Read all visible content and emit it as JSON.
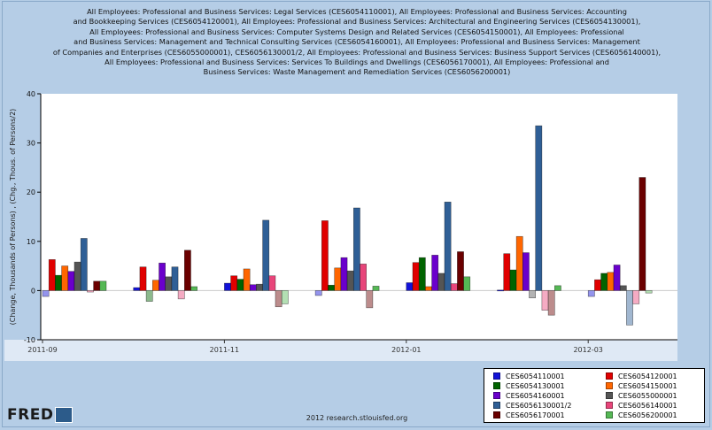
{
  "title_lines": [
    "All Employees: Professional and Business Services: Legal Services (CES6054110001), All Employees: Professional and Business Services: Accounting",
    "and Bookkeeping Services (CES6054120001), All Employees: Professional and Business Services: Architectural and Engineering Services (CES6054130001),",
    "All Employees: Professional and Business Services: Computer Systems Design and Related Services (CES6054150001), All Employees: Professional",
    "and Business Services: Management and Technical Consulting Services (CES6054160001), All Employees: Professional and Business Services: Management",
    "of Companies and Enterprises (CES6055000001), CES6056130001/2, All Employees: Professional and Business Services: Business Support Services (CES6056140001),",
    "All Employees: Professional and Business Services: Services To Buildings and Dwellings (CES6056170001), All Employees: Professional and",
    "Business Services: Waste Management and Remediation Services (CES6056200001)"
  ],
  "footer": "2012 research.stlouisfed.org",
  "logo": {
    "text": "FRED",
    "badge_icon": "chart-line-icon"
  },
  "colors": {
    "background": "#b5cde6",
    "plot_background": "#ffffff",
    "axis_band": "#dfe9f5"
  },
  "chart_data": {
    "type": "bar",
    "ylabel": "(Change, Thousands of Persons) , (Chg., Thous. of Persons/2)",
    "ylim": [
      -10,
      40
    ],
    "yticks": [
      -10,
      0,
      10,
      20,
      30,
      40
    ],
    "categories": [
      "2011-09",
      "2011-10",
      "2011-11",
      "2011-12",
      "2012-01",
      "2012-02",
      "2012-03"
    ],
    "x_tick_labels": [
      "2011-09",
      "2011-11",
      "2012-01",
      "2012-03"
    ],
    "x_tick_positions": [
      0,
      2,
      4,
      6
    ],
    "legend_position": "bottom-right",
    "series": [
      {
        "name": "CES6054110001",
        "color": "#1212d8",
        "values": [
          -1.2,
          0.6,
          1.5,
          -1.0,
          1.6,
          0.1,
          -1.2
        ]
      },
      {
        "name": "CES6054120001",
        "color": "#e00000",
        "values": [
          6.3,
          4.8,
          3.0,
          14.2,
          5.7,
          7.5,
          2.2
        ]
      },
      {
        "name": "CES6054130001",
        "color": "#006400",
        "values": [
          3.1,
          -2.2,
          2.3,
          1.1,
          6.7,
          4.2,
          3.5
        ]
      },
      {
        "name": "CES6054150001",
        "color": "#ff6600",
        "values": [
          5.0,
          2.1,
          4.4,
          4.6,
          0.8,
          11.0,
          3.7
        ]
      },
      {
        "name": "CES6054160001",
        "color": "#6a00cc",
        "values": [
          3.9,
          5.6,
          1.2,
          6.7,
          7.2,
          7.7,
          5.2
        ]
      },
      {
        "name": "CES6055000001",
        "color": "#555555",
        "values": [
          5.8,
          2.8,
          1.3,
          4.0,
          3.5,
          -1.5,
          1.0
        ]
      },
      {
        "name": "CES6056130001/2",
        "color": "#2f5f96",
        "values": [
          10.6,
          4.8,
          14.3,
          16.8,
          18.0,
          33.5,
          -7.0
        ]
      },
      {
        "name": "CES6056140001",
        "color": "#e8457a",
        "values": [
          -0.3,
          -1.7,
          3.0,
          5.4,
          1.4,
          -4.0,
          -2.7
        ]
      },
      {
        "name": "CES6056170001",
        "color": "#6b0000",
        "values": [
          1.9,
          8.2,
          -3.3,
          -3.5,
          7.9,
          -5.0,
          23.0
        ]
      },
      {
        "name": "CES6056200001",
        "color": "#55b855",
        "values": [
          1.9,
          0.8,
          -2.7,
          0.9,
          2.8,
          1.0,
          -0.5
        ]
      }
    ]
  }
}
